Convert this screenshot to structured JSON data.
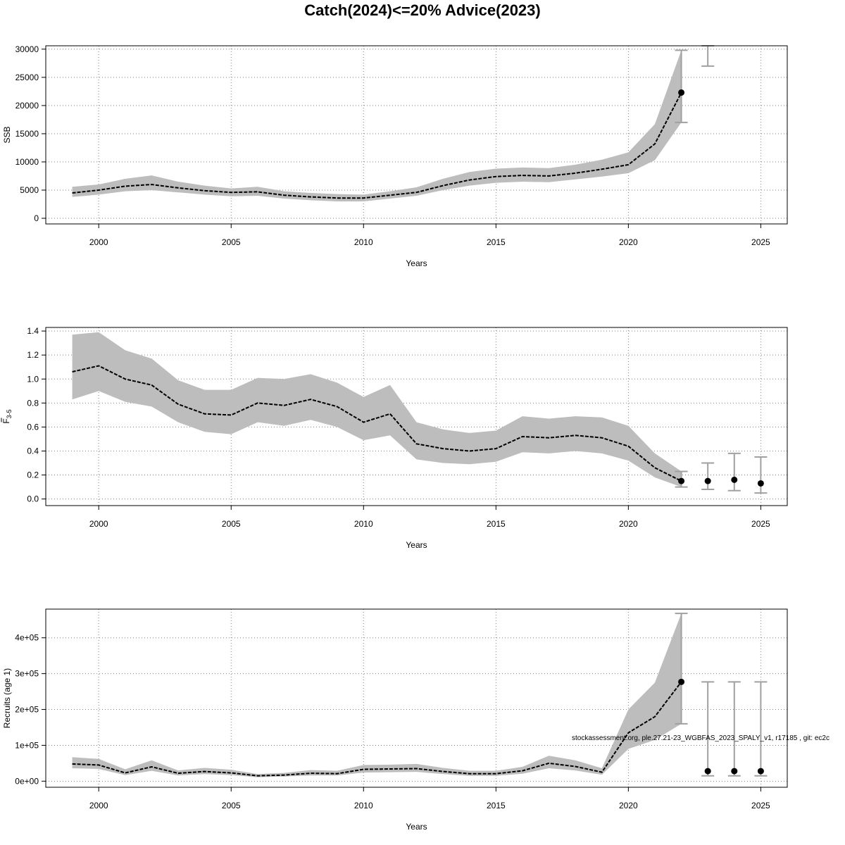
{
  "title": "Catch(2024)<=20% Advice(2023)",
  "footer_note": "stockassessment.org, ple.27.21-23_WGBFAS_2023_SPALY_v1, r17185 , git: ec2c",
  "colors": {
    "band": "#bdbdbd",
    "line": "#000000",
    "errorbar": "#a0a0a0",
    "grid": "#808080"
  },
  "chart_data": [
    {
      "type": "line",
      "name": "ssb",
      "xlabel": "Years",
      "ylabel": "SSB",
      "xlim": [
        1998,
        2026
      ],
      "ylim": [
        -1000,
        30600
      ],
      "xticks": [
        2000,
        2005,
        2010,
        2015,
        2020,
        2025
      ],
      "xtick_labels": [
        "2000",
        "2005",
        "2010",
        "2015",
        "2020",
        "2025"
      ],
      "yticks": [
        0,
        5000,
        10000,
        15000,
        20000,
        25000,
        30000
      ],
      "ytick_labels": [
        "0",
        "5000",
        "10000",
        "15000",
        "20000",
        "25000",
        "30000"
      ],
      "grid": true,
      "series": [
        {
          "x": [
            1999,
            2000,
            2001,
            2002,
            2003,
            2004,
            2005,
            2006,
            2007,
            2008,
            2009,
            2010,
            2011,
            2012,
            2013,
            2014,
            2015,
            2016,
            2017,
            2018,
            2019,
            2020,
            2021,
            2022
          ],
          "y": [
            4500,
            5000,
            5700,
            6000,
            5400,
            4900,
            4600,
            4700,
            4100,
            3800,
            3600,
            3600,
            4100,
            4600,
            5800,
            6800,
            7400,
            7600,
            7500,
            8000,
            8700,
            9500,
            13200,
            22300
          ],
          "lower": [
            3800,
            4200,
            4800,
            5000,
            4600,
            4200,
            3900,
            4000,
            3500,
            3200,
            3000,
            3000,
            3500,
            4000,
            5000,
            5800,
            6300,
            6500,
            6400,
            6900,
            7400,
            8000,
            10300,
            17000
          ],
          "upper": [
            5600,
            6000,
            7000,
            7600,
            6500,
            5800,
            5300,
            5600,
            4800,
            4500,
            4300,
            4200,
            4800,
            5500,
            7000,
            8200,
            8800,
            9000,
            8900,
            9500,
            10400,
            11700,
            16700,
            29800
          ]
        }
      ],
      "points": [
        {
          "x": 2022,
          "y": 22300,
          "lower": 17000,
          "upper": 29800
        }
      ],
      "errorbars": [
        {
          "x": 2023,
          "lower": 27000,
          "upper": 30600
        }
      ]
    },
    {
      "type": "line",
      "name": "fbar",
      "xlabel": "Years",
      "ylabel": "F3-5",
      "ylabel_main": "F",
      "ylabel_sub": "3-5",
      "xlim": [
        1998,
        2026
      ],
      "ylim": [
        -0.055,
        1.43
      ],
      "xticks": [
        2000,
        2005,
        2010,
        2015,
        2020,
        2025
      ],
      "xtick_labels": [
        "2000",
        "2005",
        "2010",
        "2015",
        "2020",
        "2025"
      ],
      "yticks": [
        0,
        0.2,
        0.4,
        0.6,
        0.8,
        1.0,
        1.2,
        1.4
      ],
      "ytick_labels": [
        "0.0",
        "0.2",
        "0.4",
        "0.6",
        "0.8",
        "1.0",
        "1.2",
        "1.4"
      ],
      "grid": true,
      "series": [
        {
          "x": [
            1999,
            2000,
            2001,
            2002,
            2003,
            2004,
            2005,
            2006,
            2007,
            2008,
            2009,
            2010,
            2011,
            2012,
            2013,
            2014,
            2015,
            2016,
            2017,
            2018,
            2019,
            2020,
            2021,
            2022
          ],
          "y": [
            1.06,
            1.11,
            1.0,
            0.95,
            0.79,
            0.71,
            0.7,
            0.8,
            0.78,
            0.83,
            0.77,
            0.64,
            0.71,
            0.46,
            0.42,
            0.4,
            0.42,
            0.52,
            0.51,
            0.53,
            0.51,
            0.44,
            0.26,
            0.15
          ],
          "lower": [
            0.83,
            0.9,
            0.81,
            0.77,
            0.64,
            0.56,
            0.54,
            0.64,
            0.61,
            0.66,
            0.6,
            0.49,
            0.53,
            0.33,
            0.3,
            0.29,
            0.31,
            0.39,
            0.38,
            0.4,
            0.38,
            0.32,
            0.18,
            0.1
          ],
          "upper": [
            1.37,
            1.39,
            1.24,
            1.17,
            0.99,
            0.91,
            0.91,
            1.01,
            1.0,
            1.04,
            0.97,
            0.85,
            0.95,
            0.64,
            0.58,
            0.55,
            0.57,
            0.69,
            0.67,
            0.69,
            0.68,
            0.61,
            0.38,
            0.23
          ]
        }
      ],
      "points": [
        {
          "x": 2022,
          "y": 0.15,
          "lower": 0.1,
          "upper": 0.23
        },
        {
          "x": 2023,
          "y": 0.15,
          "lower": 0.08,
          "upper": 0.3
        },
        {
          "x": 2024,
          "y": 0.16,
          "lower": 0.07,
          "upper": 0.38
        },
        {
          "x": 2025,
          "y": 0.13,
          "lower": 0.05,
          "upper": 0.35
        }
      ],
      "errorbars": []
    },
    {
      "type": "line",
      "name": "recruits",
      "xlabel": "Years",
      "ylabel": "Recruits (age 1)",
      "xlim": [
        1998,
        2026
      ],
      "ylim": [
        -17000,
        480000
      ],
      "xticks": [
        2000,
        2005,
        2010,
        2015,
        2020,
        2025
      ],
      "xtick_labels": [
        "2000",
        "2005",
        "2010",
        "2015",
        "2020",
        "2025"
      ],
      "yticks": [
        0,
        100000,
        200000,
        300000,
        400000
      ],
      "ytick_labels": [
        "0e+00",
        "1e+05",
        "2e+05",
        "3e+05",
        "4e+05"
      ],
      "grid": true,
      "series": [
        {
          "x": [
            1999,
            2000,
            2001,
            2002,
            2003,
            2004,
            2005,
            2006,
            2007,
            2008,
            2009,
            2010,
            2011,
            2012,
            2013,
            2014,
            2015,
            2016,
            2017,
            2018,
            2019,
            2020,
            2021,
            2022
          ],
          "y": [
            48000,
            45000,
            23000,
            40000,
            22000,
            27000,
            23000,
            15000,
            17000,
            22000,
            21000,
            33000,
            34000,
            35000,
            27000,
            21000,
            21000,
            29000,
            50000,
            41000,
            25000,
            135000,
            180000,
            277000
          ],
          "lower": [
            36000,
            34000,
            17000,
            29000,
            16000,
            20000,
            17000,
            11000,
            13000,
            16000,
            16000,
            24000,
            25000,
            26000,
            20000,
            15000,
            15000,
            21000,
            36000,
            30000,
            18000,
            90000,
            115000,
            160000
          ],
          "upper": [
            67000,
            62000,
            33000,
            58000,
            30000,
            37000,
            32000,
            20000,
            23000,
            31000,
            29000,
            45000,
            46000,
            48000,
            37000,
            29000,
            29000,
            40000,
            71000,
            58000,
            36000,
            200000,
            275000,
            468000
          ]
        }
      ],
      "points": [
        {
          "x": 2022,
          "y": 277000,
          "lower": 160000,
          "upper": 468000
        },
        {
          "x": 2023,
          "y": 28000,
          "lower": 15000,
          "upper": 277000
        },
        {
          "x": 2024,
          "y": 28000,
          "lower": 15000,
          "upper": 277000
        },
        {
          "x": 2025,
          "y": 28000,
          "lower": 15000,
          "upper": 277000
        }
      ],
      "errorbars": []
    }
  ]
}
